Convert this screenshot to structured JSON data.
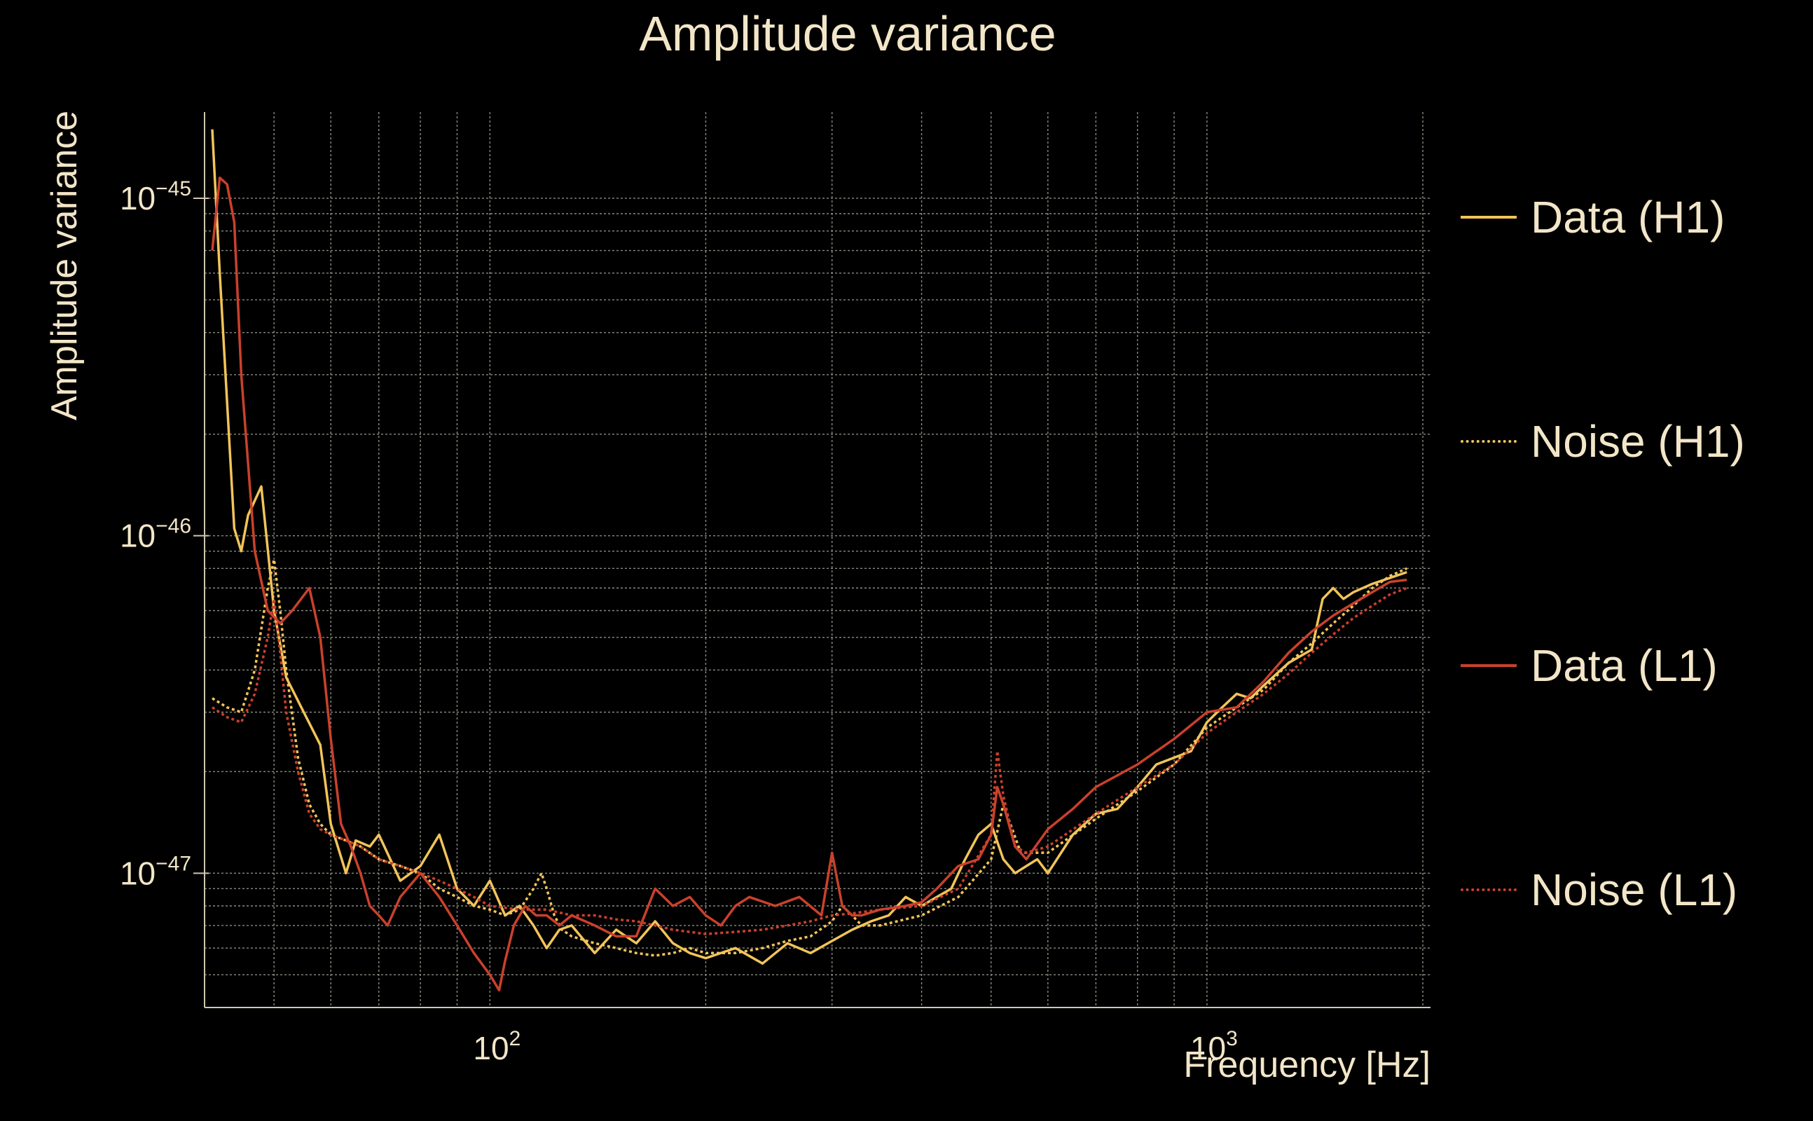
{
  "chart_data": {
    "type": "line",
    "title": "Amplitude variance",
    "xlabel": "Frequency [Hz]",
    "ylabel": "Amplitude variance",
    "xscale": "log",
    "yscale": "log",
    "xlim": [
      40,
      2050
    ],
    "ylim": [
      4e-48,
      1.8e-45
    ],
    "xticks": [
      {
        "value": 100,
        "base": "10",
        "exp": "2"
      },
      {
        "value": 1000,
        "base": "10",
        "exp": "3"
      }
    ],
    "yticks": [
      {
        "value": 1e-45,
        "base": "10",
        "exp": "−45"
      },
      {
        "value": 1e-46,
        "base": "10",
        "exp": "−46"
      },
      {
        "value": 1e-47,
        "base": "10",
        "exp": "−47"
      }
    ],
    "grid": true,
    "legend_position": "right",
    "series": [
      {
        "name": "Data (H1)",
        "color": "#f2c45a",
        "style": "solid",
        "x": [
          41,
          42,
          43,
          44,
          45,
          46,
          48,
          50,
          52,
          55,
          58,
          60,
          63,
          65,
          68,
          70,
          75,
          80,
          85,
          90,
          95,
          100,
          105,
          110,
          115,
          120,
          125,
          130,
          140,
          150,
          160,
          170,
          180,
          190,
          200,
          220,
          240,
          260,
          280,
          300,
          320,
          340,
          360,
          380,
          400,
          420,
          440,
          460,
          480,
          500,
          520,
          540,
          560,
          580,
          600,
          650,
          700,
          750,
          800,
          850,
          900,
          950,
          1000,
          1050,
          1100,
          1150,
          1200,
          1300,
          1400,
          1450,
          1500,
          1550,
          1600,
          1700,
          1800,
          1900
        ],
        "y": [
          1.6e-45,
          6e-46,
          2.5e-46,
          1.05e-46,
          9e-47,
          1.15e-46,
          1.4e-46,
          6e-47,
          3.8e-47,
          3e-47,
          2.4e-47,
          1.4e-47,
          1e-47,
          1.25e-47,
          1.2e-47,
          1.3e-47,
          9.5e-48,
          1.05e-47,
          1.3e-47,
          9e-48,
          8e-48,
          9.5e-48,
          7.5e-48,
          8e-48,
          7e-48,
          6e-48,
          6.8e-48,
          7e-48,
          5.8e-48,
          6.8e-48,
          6.2e-48,
          7.2e-48,
          6.2e-48,
          5.8e-48,
          5.6e-48,
          6e-48,
          5.4e-48,
          6.2e-48,
          5.8e-48,
          6.3e-48,
          6.8e-48,
          7.2e-48,
          7.5e-48,
          8.5e-48,
          8e-48,
          8.5e-48,
          9e-48,
          1.1e-47,
          1.3e-47,
          1.4e-47,
          1.1e-47,
          1e-47,
          1.05e-47,
          1.1e-47,
          1e-47,
          1.3e-47,
          1.5e-47,
          1.55e-47,
          1.8e-47,
          2.1e-47,
          2.2e-47,
          2.3e-47,
          2.8e-47,
          3.1e-47,
          3.4e-47,
          3.3e-47,
          3.6e-47,
          4.2e-47,
          4.6e-47,
          6.5e-47,
          7e-47,
          6.5e-47,
          6.8e-47,
          7.2e-47,
          7.5e-47,
          7.8e-47
        ]
      },
      {
        "name": "Noise (H1)",
        "color": "#f2c45a",
        "style": "dotted",
        "x": [
          41,
          43,
          45,
          47,
          49,
          50,
          51,
          52,
          54,
          56,
          58,
          60,
          63,
          66,
          70,
          75,
          80,
          85,
          90,
          95,
          100,
          105,
          110,
          115,
          118,
          120,
          123,
          126,
          130,
          140,
          150,
          160,
          170,
          180,
          190,
          200,
          220,
          240,
          260,
          280,
          300,
          310,
          320,
          330,
          350,
          400,
          450,
          500,
          520,
          550,
          600,
          700,
          800,
          900,
          1000,
          1100,
          1200,
          1300,
          1400,
          1500,
          1600,
          1700,
          1800,
          1900
        ],
        "y": [
          3.3e-47,
          3.1e-47,
          3e-47,
          4e-47,
          7e-47,
          8.5e-47,
          6e-47,
          4e-47,
          2.2e-47,
          1.6e-47,
          1.4e-47,
          1.3e-47,
          1.25e-47,
          1.2e-47,
          1.1e-47,
          1.05e-47,
          1e-47,
          9e-48,
          8.5e-48,
          8e-48,
          7.8e-48,
          7.5e-48,
          7.8e-48,
          9e-48,
          1e-47,
          9e-48,
          7.5e-48,
          6.8e-48,
          6.5e-48,
          6.2e-48,
          6e-48,
          5.8e-48,
          5.7e-48,
          5.8e-48,
          6e-48,
          5.8e-48,
          5.8e-48,
          6e-48,
          6.3e-48,
          6.5e-48,
          7.2e-48,
          8e-48,
          7.5e-48,
          7e-48,
          7e-48,
          7.5e-48,
          8.5e-48,
          1.1e-47,
          1.6e-47,
          1.15e-47,
          1.15e-47,
          1.45e-47,
          1.75e-47,
          2.1e-47,
          2.7e-47,
          3.1e-47,
          3.5e-47,
          4.2e-47,
          4.8e-47,
          5.5e-47,
          6.2e-47,
          7e-47,
          7.6e-47,
          8e-47
        ]
      },
      {
        "name": "Data (L1)",
        "color": "#c9412c",
        "style": "solid",
        "x": [
          41,
          42,
          43,
          44,
          45,
          47,
          49,
          51,
          53,
          56,
          58,
          60,
          62,
          64,
          66,
          68,
          70,
          72,
          75,
          80,
          85,
          90,
          95,
          100,
          103,
          105,
          108,
          112,
          116,
          120,
          125,
          130,
          140,
          150,
          160,
          170,
          180,
          190,
          200,
          210,
          220,
          230,
          250,
          270,
          290,
          300,
          310,
          320,
          330,
          350,
          380,
          400,
          420,
          450,
          480,
          500,
          510,
          520,
          540,
          560,
          600,
          650,
          700,
          800,
          900,
          1000,
          1100,
          1200,
          1300,
          1400,
          1500,
          1600,
          1700,
          1800,
          1900
        ],
        "y": [
          7e-46,
          1.15e-45,
          1.1e-45,
          8.5e-46,
          3e-46,
          9e-47,
          6e-47,
          5.5e-47,
          6e-47,
          7e-47,
          5e-47,
          2.5e-47,
          1.4e-47,
          1.2e-47,
          1e-47,
          8e-48,
          7.5e-48,
          7e-48,
          8.5e-48,
          1e-47,
          8.5e-48,
          7e-48,
          5.8e-48,
          5e-48,
          4.5e-48,
          5.5e-48,
          7e-48,
          8e-48,
          7.5e-48,
          7.5e-48,
          7e-48,
          7.5e-48,
          7e-48,
          6.5e-48,
          6.5e-48,
          9e-48,
          8e-48,
          8.5e-48,
          7.5e-48,
          7e-48,
          8e-48,
          8.5e-48,
          8e-48,
          8.5e-48,
          7.5e-48,
          1.15e-47,
          8e-48,
          7.5e-48,
          7.5e-48,
          7.8e-48,
          8e-48,
          8.2e-48,
          9e-48,
          1.05e-47,
          1.1e-47,
          1.3e-47,
          1.8e-47,
          1.6e-47,
          1.2e-47,
          1.1e-47,
          1.35e-47,
          1.55e-47,
          1.8e-47,
          2.1e-47,
          2.5e-47,
          3e-47,
          3.1e-47,
          3.7e-47,
          4.5e-47,
          5.2e-47,
          5.8e-47,
          6.3e-47,
          6.8e-47,
          7.3e-47,
          7.4e-47
        ]
      },
      {
        "name": "Noise (L1)",
        "color": "#c9412c",
        "style": "dotted",
        "x": [
          41,
          43,
          45,
          47,
          49,
          50,
          51,
          52,
          54,
          56,
          58,
          60,
          63,
          66,
          70,
          75,
          80,
          85,
          90,
          95,
          100,
          110,
          120,
          130,
          140,
          150,
          160,
          170,
          180,
          190,
          200,
          220,
          240,
          260,
          280,
          300,
          320,
          350,
          400,
          450,
          500,
          510,
          520,
          540,
          560,
          600,
          700,
          800,
          900,
          1000,
          1100,
          1200,
          1300,
          1400,
          1500,
          1600,
          1700,
          1800,
          1900
        ],
        "y": [
          3.1e-47,
          2.9e-47,
          2.8e-47,
          3.4e-47,
          5e-47,
          6.5e-47,
          4.5e-47,
          3e-47,
          2e-47,
          1.5e-47,
          1.35e-47,
          1.3e-47,
          1.25e-47,
          1.2e-47,
          1.1e-47,
          1.05e-47,
          1e-47,
          9.5e-48,
          9e-48,
          8.5e-48,
          8e-48,
          7.8e-48,
          7.8e-48,
          7.5e-48,
          7.5e-48,
          7.3e-48,
          7.2e-48,
          7e-48,
          6.8e-48,
          6.7e-48,
          6.6e-48,
          6.7e-48,
          6.8e-48,
          7e-48,
          7.2e-48,
          7.5e-48,
          7.6e-48,
          7.8e-48,
          8e-48,
          9e-48,
          1.3e-47,
          2.3e-47,
          1.7e-47,
          1.2e-47,
          1.15e-47,
          1.2e-47,
          1.5e-47,
          1.8e-47,
          2.1e-47,
          2.6e-47,
          3e-47,
          3.4e-47,
          3.9e-47,
          4.5e-47,
          5.1e-47,
          5.7e-47,
          6.2e-47,
          6.7e-47,
          7e-47
        ]
      }
    ]
  }
}
